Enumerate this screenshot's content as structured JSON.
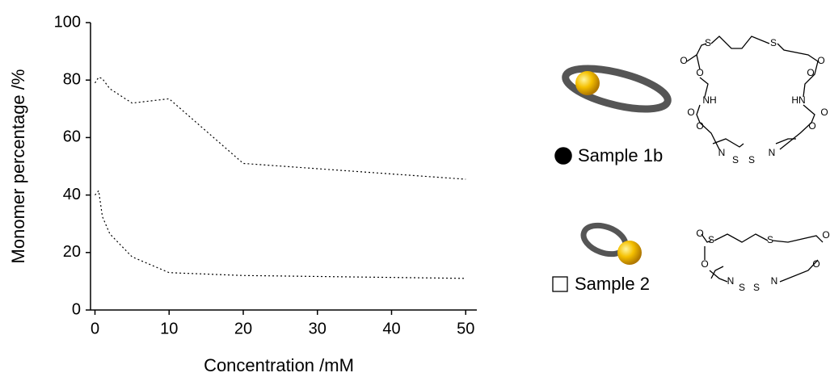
{
  "chart_data": {
    "type": "scatter",
    "x_label": "Concentration /mM",
    "y_label": "Monomer percentage /%",
    "xlim": [
      -0.6,
      51.5
    ],
    "ylim": [
      0,
      100
    ],
    "xticks": [
      0,
      10,
      20,
      30,
      40,
      50
    ],
    "yticks": [
      0,
      20,
      40,
      60,
      80,
      100
    ],
    "series": [
      {
        "name": "Sample 1b",
        "color": "#000000",
        "marker": "circle",
        "filled": true,
        "line_style": "dotted",
        "x": [
          0,
          0.5,
          1,
          2,
          5,
          10,
          20,
          50
        ],
        "values": [
          79,
          81,
          80.5,
          77,
          72,
          73.5,
          51,
          45.5
        ]
      },
      {
        "name": "Sample 2",
        "color": "#000000",
        "marker": "square",
        "filled": false,
        "line_style": "dotted",
        "x": [
          0,
          0.5,
          1,
          2,
          5,
          10,
          20,
          50
        ],
        "values": [
          40,
          41.5,
          32.5,
          26.5,
          18.5,
          13,
          12,
          11
        ]
      }
    ]
  },
  "structures": [
    {
      "atoms": [
        "S",
        "S",
        "O",
        "O",
        "O",
        "O",
        "NH",
        "HN",
        "O",
        "O",
        "O",
        "O",
        "N",
        "S",
        "S",
        "N"
      ]
    },
    {
      "atoms": [
        "S",
        "S",
        "O",
        "O",
        "O",
        "O",
        "N",
        "S",
        "S",
        "N"
      ]
    }
  ]
}
